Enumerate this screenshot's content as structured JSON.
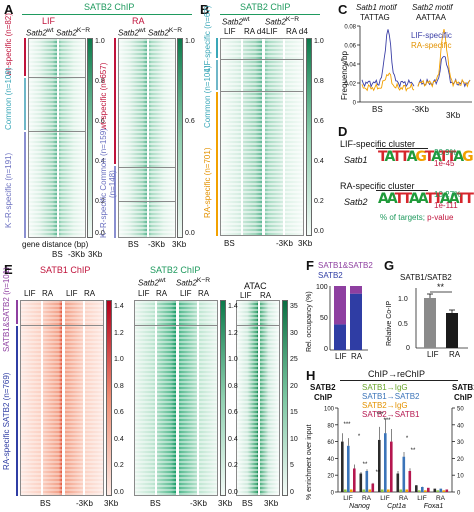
{
  "panels": {
    "A": {
      "letter": "A",
      "header": "SATB2 ChIP",
      "groups": [
        "LIF",
        "RA"
      ],
      "samples": [
        "Satb2",
        "wt",
        "Satb2",
        "K−R"
      ],
      "row_labels_lif": [
        "wt-specific",
        "(n=82)",
        "Common",
        "(n=109)",
        "K−R-specific",
        "(n=191)"
      ],
      "row_labels_ra": [
        "wt-specific",
        "(n=657)",
        "K−R-specific Common",
        "(n=148)",
        "(n=159)"
      ],
      "scale": [
        "1.0",
        "0.8",
        "0.6",
        "0.4",
        "0.2",
        "0.0"
      ],
      "xlabel": "gene distance (bp)",
      "xticks": [
        "BS",
        "-3Kb",
        "3Kb"
      ]
    },
    "B": {
      "letter": "B",
      "header": "SATB2 ChIP",
      "samples": [
        "Satb2",
        "wt",
        "Satb2",
        "K−R"
      ],
      "columns": [
        "LIF",
        "RA d4",
        "LIF",
        "RA d4"
      ],
      "row_labels": [
        "LIF-specific",
        "(n=67)",
        "Common",
        "(n=104)",
        "RA-specific",
        "(n=701)"
      ],
      "scale": [
        "1.0",
        "0.8",
        "0.6",
        "0.4",
        "0.2",
        "0.0"
      ],
      "xticks": [
        "BS",
        "-3Kb",
        "3Kb"
      ]
    },
    "C": {
      "letter": "C",
      "motif1_title": "Satb1 motif",
      "motif1_seq": "TATTAG",
      "motif2_title": "Satb2 motif",
      "motif2_seq": "AATTAA",
      "legend": [
        "LIF-specific",
        "RA-specific"
      ],
      "ylabel": "Frequency/bp",
      "yticks": [
        "0.08",
        "0.06",
        "0.04",
        "0.02",
        "0"
      ],
      "xticks": [
        "BS",
        "-3Kb",
        "3Kb"
      ],
      "colors": {
        "lif": "#3b3fa6",
        "ra": "#f2a100"
      }
    },
    "D": {
      "letter": "D",
      "cluster1": "LIF-specific cluster",
      "gene1": "Satb1",
      "logo1": "TATTAGTATTAG",
      "pct1": "20.9%",
      "p1": "1e-45",
      "cluster2": "RA-specific cluster",
      "gene2": "Satb2",
      "logo2": "AATTAATTAATT",
      "pct2": "10.27%",
      "p2": "1e-111",
      "footnote_targets": "% of targets;",
      "footnote_p": "p-value"
    },
    "E": {
      "letter": "E",
      "satb1_header": "SATB1 ChIP",
      "satb2_header": "SATB2 ChIP",
      "atac_header": "ATAC",
      "satb2_samples": [
        "Satb2",
        "wt",
        "Satb2",
        "K−R"
      ],
      "columns": [
        "LIF",
        "RA",
        "LIF",
        "RA"
      ],
      "atac_columns": [
        "LIF",
        "RA"
      ],
      "row_labels": [
        "SATB1&SATB2",
        "(n=101)",
        "RA-specific SATB2",
        "(n=769)"
      ],
      "scale_red": [
        "1.4",
        "1.2",
        "1.0",
        "0.8",
        "0.6",
        "0.4",
        "0.2",
        "0.0"
      ],
      "scale_green": [
        "1.4",
        "1.2",
        "1.0",
        "0.8",
        "0.6",
        "0.4",
        "0.2",
        "0.0"
      ],
      "scale_atac": [
        "35",
        "30",
        "25",
        "20",
        "15",
        "10",
        "5",
        "0"
      ],
      "xticks": [
        "BS",
        "-3Kb",
        "3Kb"
      ]
    },
    "F": {
      "letter": "F",
      "legend": [
        "SATB1&SATB2",
        "SATB2"
      ],
      "ylabel": "Rel. occupancy (%)",
      "yticks": [
        "100",
        "50",
        "0"
      ],
      "categories": [
        "LIF",
        "RA"
      ],
      "colors": {
        "both": "#8e3fa0",
        "satb2": "#2f3da4"
      }
    },
    "G": {
      "letter": "G",
      "title": "SATB1/SATB2",
      "ylabel": "Relative Co-IP",
      "yticks": [
        "1.0",
        "0.5",
        "0"
      ],
      "categories": [
        "LIF",
        "RA"
      ],
      "sig": "**"
    },
    "H": {
      "letter": "H",
      "title": "ChIP→reChIP",
      "left_axis_title": [
        "SATB2",
        "ChIP"
      ],
      "right_axis_title": [
        "SATB1",
        "ChIP"
      ],
      "legend": [
        "SATB1→IgG",
        "SATB1→SATB2",
        "SATB2→IgG",
        "SATB2→SATB1"
      ],
      "ylabel": "% enrichment over input",
      "yticks_left": [
        "100",
        "80",
        "60",
        "40",
        "20",
        "0"
      ],
      "yticks_right": [
        "50",
        "40",
        "30",
        "20",
        "10",
        "0"
      ],
      "conditions": [
        "LIF",
        "RA",
        "LIF",
        "RA",
        "LIF",
        "RA"
      ],
      "genes": [
        "Nanog",
        "Cpt1a",
        "Foxa1"
      ],
      "stars": [
        "***",
        "*",
        "**",
        "**",
        "***",
        "***",
        "*",
        "**"
      ],
      "colors": {
        "s1_igg": "#8cc63f",
        "s1_s2": "#3b74b9",
        "s2_igg": "#f2a100",
        "s2_s1": "#b5174f",
        "dark": "#2c2c2c"
      }
    }
  },
  "chart_data": [
    {
      "type": "line",
      "title": "Satb1 motif TATTAG",
      "xlabel": "",
      "ylabel": "Frequency/bp",
      "x": [
        "-3Kb",
        "BS",
        "3Kb"
      ],
      "ylim": [
        0,
        0.08
      ],
      "series": [
        {
          "name": "LIF-specific",
          "peak": 0.075,
          "baseline": 0.02
        },
        {
          "name": "RA-specific",
          "peak": 0.03,
          "baseline": 0.015
        }
      ]
    },
    {
      "type": "line",
      "title": "Satb2 motif AATTAA",
      "x": [
        "-3Kb",
        "BS",
        "3Kb"
      ],
      "ylim": [
        0,
        0.08
      ],
      "series": [
        {
          "name": "LIF-specific",
          "peak": 0.05,
          "baseline": 0.02
        },
        {
          "name": "RA-specific",
          "peak": 0.075,
          "baseline": 0.02
        }
      ]
    },
    {
      "type": "bar",
      "title": "",
      "ylabel": "Rel. occupancy (%)",
      "categories": [
        "LIF",
        "RA"
      ],
      "ylim": [
        0,
        100
      ],
      "series": [
        {
          "name": "SATB2",
          "values": [
            40,
            88
          ]
        },
        {
          "name": "SATB1&SATB2",
          "values": [
            60,
            12
          ]
        }
      ]
    },
    {
      "type": "bar",
      "title": "SATB1/SATB2",
      "ylabel": "Relative Co-IP",
      "categories": [
        "LIF",
        "RA"
      ],
      "ylim": [
        0,
        1.2
      ],
      "values": [
        1.0,
        0.7
      ],
      "errors": [
        0.08,
        0.06
      ]
    },
    {
      "type": "bar",
      "title": "ChIP→reChIP",
      "ylabel": "% enrichment over input",
      "categories": [
        "Nanog LIF",
        "Nanog RA",
        "Cpt1a LIF",
        "Cpt1a RA",
        "Foxa1 LIF",
        "Foxa1 RA"
      ],
      "ylim": [
        0,
        100
      ],
      "series": [
        {
          "name": "SATB2 ChIP",
          "values": [
            60,
            22,
            62,
            22,
            8,
            4
          ]
        },
        {
          "name": "SATB1→IgG",
          "values": [
            3,
            3,
            3,
            3,
            2,
            2
          ]
        },
        {
          "name": "SATB1→SATB2",
          "values": [
            55,
            25,
            70,
            42,
            6,
            4
          ]
        },
        {
          "name": "SATB2→IgG",
          "values": [
            3,
            3,
            3,
            3,
            2,
            2
          ]
        },
        {
          "name": "SATB2→SATB1",
          "values": [
            28,
            10,
            60,
            25,
            5,
            3
          ]
        }
      ],
      "errors": [
        10,
        5,
        15,
        8,
        3,
        2
      ]
    }
  ]
}
